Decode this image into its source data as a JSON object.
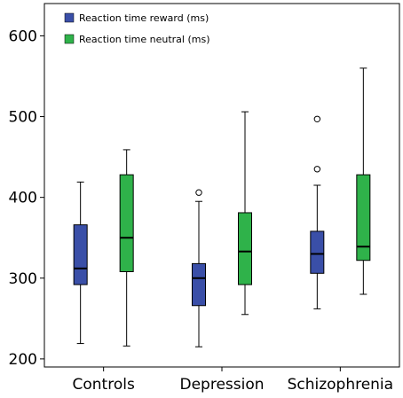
{
  "chart_data": {
    "type": "box",
    "title": "",
    "xlabel": "",
    "ylabel": "",
    "ylim": [
      190,
      640
    ],
    "yticks": [
      200,
      300,
      400,
      500,
      600
    ],
    "grid": false,
    "legend_position": "top-left",
    "categories": [
      "Controls",
      "Depression",
      "Schizophrenia"
    ],
    "series": [
      {
        "name": "Reaction time reward (ms)",
        "color": "#3a4fa8",
        "boxes": [
          {
            "category": "Controls",
            "whisker_low": 219,
            "q1": 292,
            "median": 312,
            "q3": 366,
            "whisker_high": 419,
            "outliers": []
          },
          {
            "category": "Depression",
            "whisker_low": 215,
            "q1": 266,
            "median": 300,
            "q3": 318,
            "whisker_high": 395,
            "outliers": [
              406
            ]
          },
          {
            "category": "Schizophrenia",
            "whisker_low": 262,
            "q1": 306,
            "median": 330,
            "q3": 358,
            "whisker_high": 415,
            "outliers": [
              435,
              497
            ]
          }
        ]
      },
      {
        "name": "Reaction time neutral (ms)",
        "color": "#2fb24a",
        "boxes": [
          {
            "category": "Controls",
            "whisker_low": 216,
            "q1": 308,
            "median": 350,
            "q3": 428,
            "whisker_high": 459,
            "outliers": []
          },
          {
            "category": "Depression",
            "whisker_low": 255,
            "q1": 292,
            "median": 333,
            "q3": 381,
            "whisker_high": 506,
            "outliers": []
          },
          {
            "category": "Schizophrenia",
            "whisker_low": 280,
            "q1": 322,
            "median": 339,
            "q3": 428,
            "whisker_high": 560,
            "outliers": []
          }
        ]
      }
    ]
  }
}
